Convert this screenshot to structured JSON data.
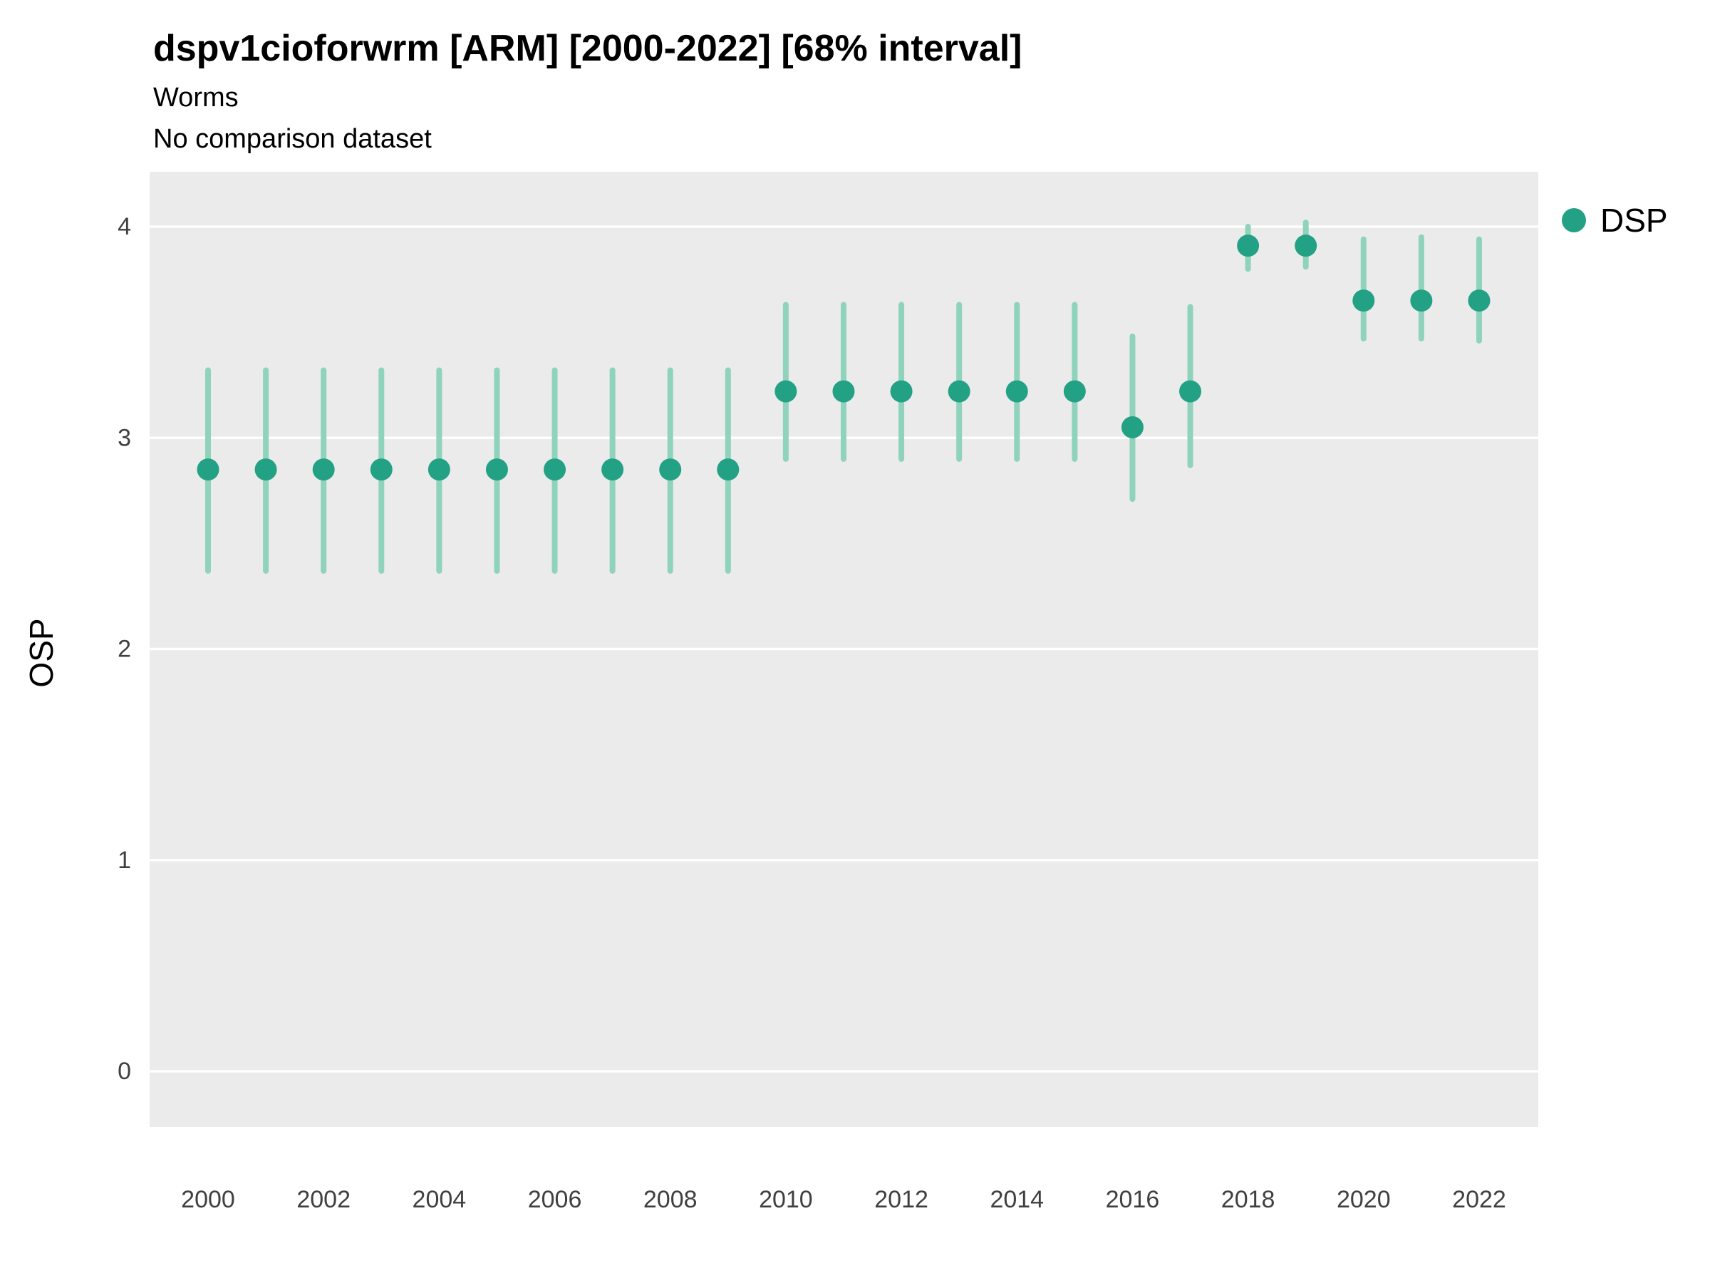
{
  "chart_data": {
    "type": "scatter",
    "title": "dspv1cioforwrm [ARM] [2000-2022] [68% interval]",
    "subtitle": "Worms",
    "note": "No comparison dataset",
    "xlabel": "",
    "ylabel": "OSP",
    "interval_label": "68% interval",
    "legend": [
      {
        "label": "DSP",
        "color": "#23a184"
      }
    ],
    "panel_bg": "#ebebeb",
    "grid_color": "#ffffff",
    "point_color": "#23a184",
    "interval_color": "#8fd3bc",
    "tick_color": "#404040",
    "grid": "horizontal major gridlines, white on gray panel",
    "legend_position": "right-top",
    "ylim": [
      -0.26,
      4.26
    ],
    "yticks": [
      0,
      1,
      2,
      3,
      4
    ],
    "xticks": [
      2000,
      2002,
      2004,
      2006,
      2008,
      2010,
      2012,
      2014,
      2016,
      2018,
      2020,
      2022
    ],
    "x": [
      2000,
      2001,
      2002,
      2003,
      2004,
      2005,
      2006,
      2007,
      2008,
      2009,
      2010,
      2011,
      2012,
      2013,
      2014,
      2015,
      2016,
      2017,
      2018,
      2019,
      2020,
      2021,
      2022
    ],
    "series": [
      {
        "name": "DSP",
        "mean": [
          2.85,
          2.85,
          2.85,
          2.85,
          2.85,
          2.85,
          2.85,
          2.85,
          2.85,
          2.85,
          3.22,
          3.22,
          3.22,
          3.22,
          3.22,
          3.22,
          3.05,
          3.22,
          3.91,
          3.91,
          3.65,
          3.65,
          3.65
        ],
        "lower": [
          2.37,
          2.37,
          2.37,
          2.37,
          2.37,
          2.37,
          2.37,
          2.37,
          2.37,
          2.37,
          2.9,
          2.9,
          2.9,
          2.9,
          2.9,
          2.9,
          2.71,
          2.87,
          3.8,
          3.81,
          3.47,
          3.47,
          3.46
        ],
        "upper": [
          3.32,
          3.32,
          3.32,
          3.32,
          3.32,
          3.32,
          3.32,
          3.32,
          3.32,
          3.32,
          3.63,
          3.63,
          3.63,
          3.63,
          3.63,
          3.63,
          3.48,
          3.62,
          4.0,
          4.02,
          3.94,
          3.95,
          3.94
        ]
      }
    ]
  }
}
